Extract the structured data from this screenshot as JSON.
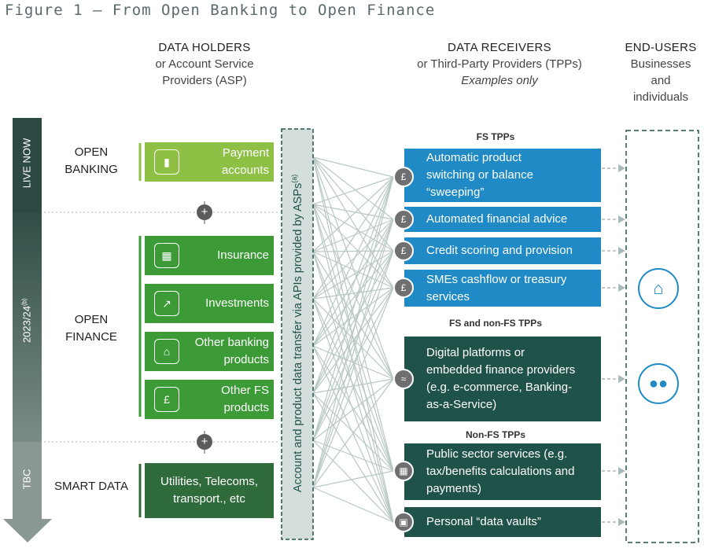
{
  "title": "Figure 1 – From Open Banking to Open Finance",
  "headers": {
    "holders_title": "DATA HOLDERS",
    "holders_sub1": "or Account Service",
    "holders_sub2": "Providers (ASP)",
    "receivers_title": "DATA RECEIVERS",
    "receivers_sub1": "or Third-Party Providers (TPPs)",
    "receivers_sub2": "Examples only",
    "endusers_title": "END-USERS",
    "endusers_sub1": "Businesses",
    "endusers_sub2": "and",
    "endusers_sub3": "individuals"
  },
  "stages": {
    "live": "LIVE NOW",
    "year": "2023/24",
    "year_sup": "(b)",
    "tbc": "TBC"
  },
  "rows": {
    "open_banking_1": "OPEN",
    "open_banking_2": "BANKING",
    "open_finance_1": "OPEN",
    "open_finance_2": "FINANCE",
    "smart_data": "SMART DATA"
  },
  "holders": {
    "payment_1": "Payment",
    "payment_2": "accounts",
    "insurance": "Insurance",
    "investments": "Investments",
    "other_banking_1": "Other banking",
    "other_banking_2": "products",
    "other_fs_1": "Other FS",
    "other_fs_2": "products",
    "utilities_1": "Utilities, Telecoms,",
    "utilities_2": "transport., etc"
  },
  "api_bar": "Account and product data transfer via APIs provided by ASPs",
  "api_bar_sup": "(a)",
  "plus": "+",
  "receivers": {
    "fs_label": "FS TPPs",
    "r1_1": "Automatic product",
    "r1_2": "switching or balance",
    "r1_3": "“sweeping”",
    "r2": "Automated financial advice",
    "r3": "Credit scoring and provision",
    "r4_1": "SMEs cashflow or treasury",
    "r4_2": "services",
    "fs_nonfs_label": "FS and non-FS TPPs",
    "r5_1": "Digital platforms or",
    "r5_2": "embedded finance providers",
    "r5_3": "(e.g. e-commerce, Banking-",
    "r5_4": "as-a-Service)",
    "nonfs_label": "Non-FS TPPs",
    "r6_1": "Public sector services (e.g.",
    "r6_2": "tax/benefits calculations and",
    "r6_3": "payments)",
    "r7": "Personal “data vaults”"
  },
  "icons": {
    "coin": "pound-coin-icon",
    "wifi": "wifi-icon",
    "calculator": "calculator-icon",
    "image": "image-icon",
    "shop": "shop-icon",
    "people": "people-icon"
  },
  "colors": {
    "light_green": "#8dc044",
    "green": "#3c9a37",
    "dark_green": "#2f6b3b",
    "blue": "#1f8ac5",
    "teal_dark": "#1f5249",
    "stage_gray": "#566a63",
    "stage_dark": "#2c4a43"
  }
}
